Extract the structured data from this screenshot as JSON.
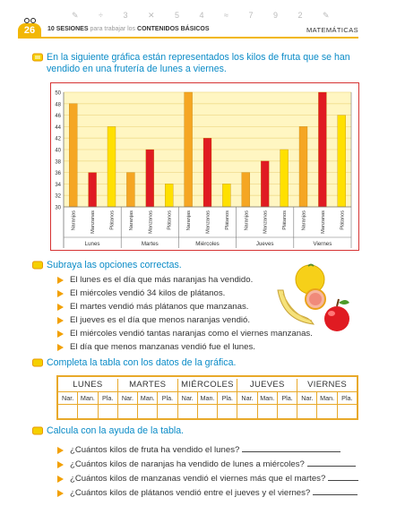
{
  "header": {
    "page_number": "26",
    "sessions_prefix": "10 SESIONES",
    "sessions_mid": " para trabajar los ",
    "sessions_suffix": "CONTENIDOS BÁSICOS",
    "subject": "MATEMÁTICAS",
    "band_color": "#f2b705"
  },
  "instructions": {
    "i1_line1": "En la siguiente gráfica están representados los kilos de fruta que se han",
    "i1_line2": "vendido en una frutería de lunes a viernes.",
    "i2": "Subraya las opciones correctas.",
    "i3": "Completa la tabla con los datos de la gráfica.",
    "i4": "Calcula con la ayuda de la tabla."
  },
  "chart_data": {
    "type": "bar",
    "ylim": [
      30,
      50
    ],
    "yticks": [
      30,
      32,
      34,
      36,
      38,
      40,
      42,
      44,
      46,
      48,
      50
    ],
    "days": [
      "Lunes",
      "Martes",
      "Miércoles",
      "Jueves",
      "Viernes"
    ],
    "fruits": [
      "Naranjas",
      "Manzanas",
      "Plátanos"
    ],
    "series": [
      {
        "name": "Naranjas",
        "color": "#f5a623",
        "values": [
          48,
          36,
          50,
          36,
          44
        ]
      },
      {
        "name": "Manzanas",
        "color": "#e01b22",
        "values": [
          36,
          40,
          42,
          38,
          50
        ]
      },
      {
        "name": "Plátanos",
        "color": "#ffe000",
        "values": [
          44,
          34,
          34,
          40,
          46
        ]
      }
    ],
    "grid_color": "#f0dc8c",
    "plot_bg": "#fff6c2"
  },
  "options": [
    "El lunes es el día que más naranjas ha vendido.",
    "El miércoles vendió 34 kilos de plátanos.",
    "El martes vendió más plátanos que manzanas.",
    "El jueves es el día que menos naranjas vendió.",
    "El miércoles vendió tantas naranjas como el viernes manzanas.",
    "El día que menos manzanas vendió fue el lunes."
  ],
  "table": {
    "days": [
      "LUNES",
      "MARTES",
      "MIÉRCOLES",
      "JUEVES",
      "VIERNES"
    ],
    "sub": [
      "Nar.",
      "Man.",
      "Pla."
    ]
  },
  "questions": [
    "¿Cuántos kilos de fruta ha vendido el lunes?",
    "¿Cuántos kilos de naranjas ha vendido de lunes a miércoles?",
    "¿Cuántos kilos de manzanas vendió el viernes más que el martes?",
    "¿Cuántos kilos de plátanos vendió entre el jueves y el viernes?"
  ]
}
